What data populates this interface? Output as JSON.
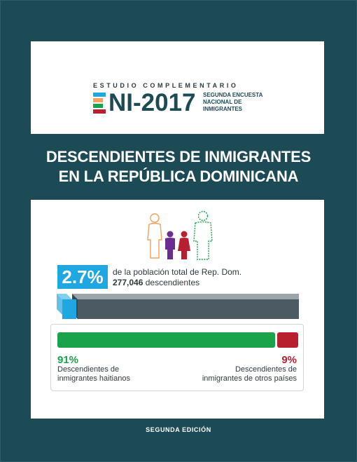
{
  "header": {
    "subtitle": "ESTUDIO COMPLEMENTARIO",
    "brand": "NI-2017",
    "side_line1": "SEGUNDA ENCUESTA",
    "side_line2": "NACIONAL DE",
    "side_line3": "INMIGRANTES"
  },
  "title": {
    "line1": "DESCENDIENTES DE INMIGRANTES",
    "line2": "EN LA REPÚBLICA DOMINICANA"
  },
  "stat": {
    "percent": "2.7%",
    "line1": "de la población total de Rep. Dom.",
    "line2_number": "277,046",
    "line2_rest": " descendientes"
  },
  "distribution": {
    "haitian_percent": "91%",
    "haitian_value": 91,
    "haitian_label_1": "Descendientes de",
    "haitian_label_2": "inmigrantes haitianos",
    "other_percent": "9%",
    "other_value": 9,
    "other_label_1": "Descendientes de",
    "other_label_2": "inmigrantes de otros países"
  },
  "footer": {
    "edition": "SEGUNDA EDICIÓN"
  },
  "colors": {
    "background": "#1c4a55",
    "blue": "#1ea7e0",
    "green": "#1aa34a",
    "red": "#b8202f",
    "purple": "#6a2c8f",
    "orange": "#f0a35e",
    "gray_bar": "#4b5a63"
  }
}
